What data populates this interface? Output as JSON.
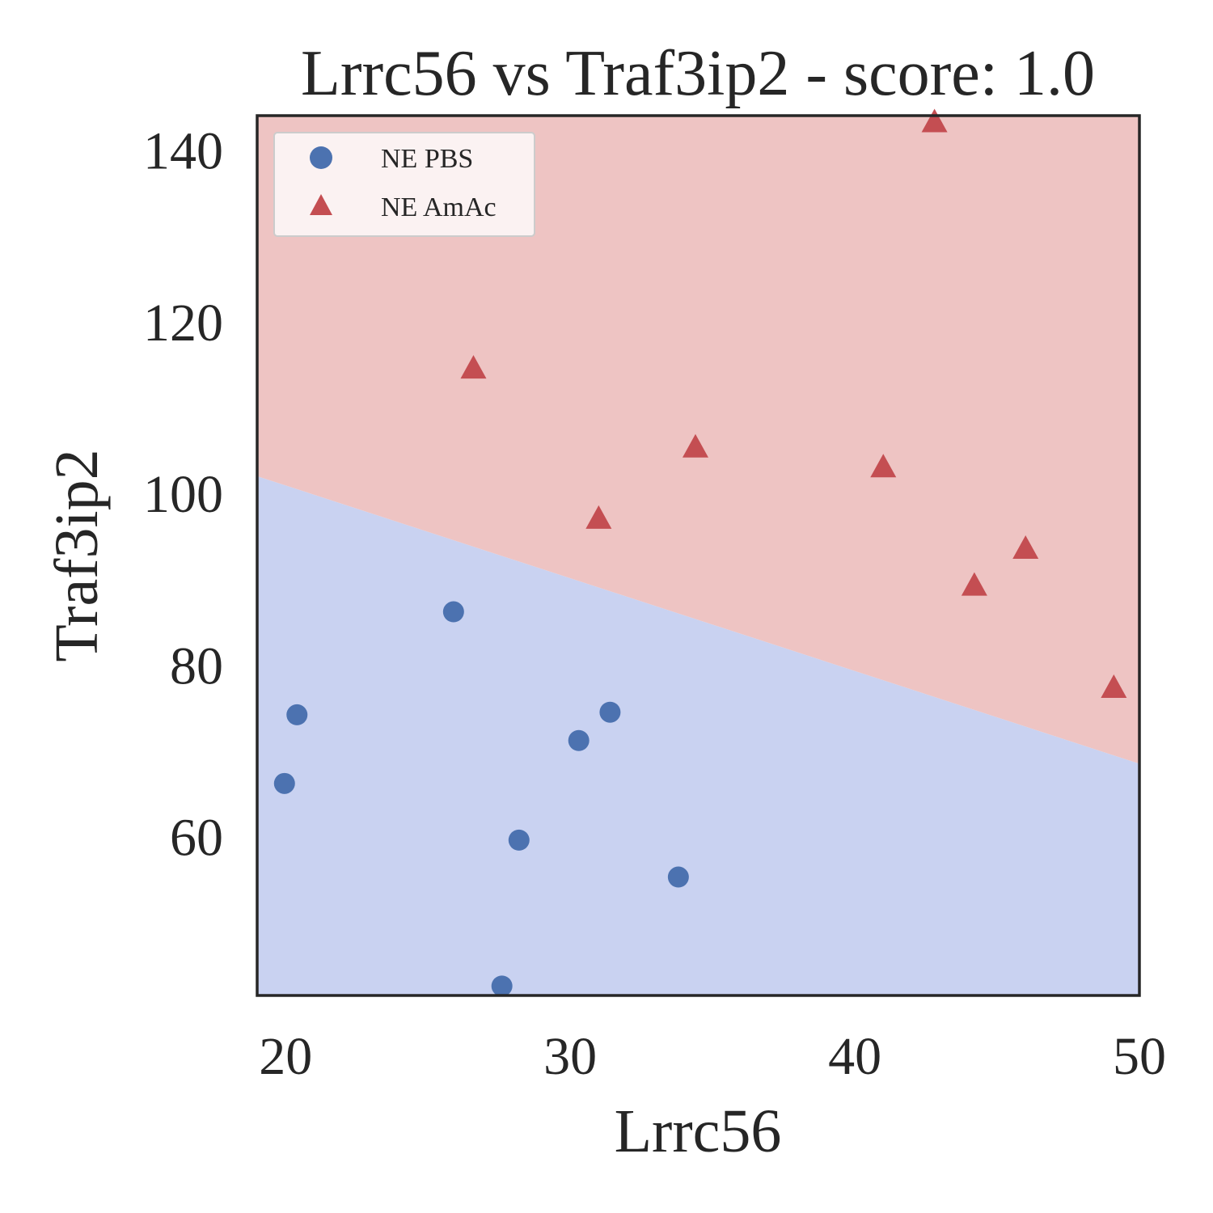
{
  "chart_data": {
    "type": "scatter",
    "title": "Lrrc56 vs Traf3ip2 - score: 1.0",
    "xlabel": "Lrrc56",
    "ylabel": "Traf3ip2",
    "xlim": [
      19,
      50
    ],
    "ylim": [
      41.5,
      144
    ],
    "xticks": [
      20,
      30,
      40,
      50
    ],
    "yticks": [
      60,
      80,
      100,
      120,
      140
    ],
    "grid": false,
    "legend_position": "top-left",
    "decision_boundary": {
      "left_y": 102,
      "right_y": 68.5
    },
    "region_colors": {
      "below": "#c9d2f1",
      "above": "#eec4c3"
    },
    "series": [
      {
        "name": "NE PBS",
        "marker": "circle",
        "color": "#4c72b0",
        "points": [
          {
            "x": 19.96,
            "y": 66.2
          },
          {
            "x": 20.4,
            "y": 74.2
          },
          {
            "x": 25.9,
            "y": 86.2
          },
          {
            "x": 27.6,
            "y": 42.6
          },
          {
            "x": 28.2,
            "y": 59.6
          },
          {
            "x": 30.3,
            "y": 71.2
          },
          {
            "x": 31.4,
            "y": 74.5
          },
          {
            "x": 33.8,
            "y": 55.3
          }
        ]
      },
      {
        "name": "NE AmAc",
        "marker": "triangle",
        "color": "#c44e52",
        "points": [
          {
            "x": 26.6,
            "y": 114.5
          },
          {
            "x": 31.0,
            "y": 97.0
          },
          {
            "x": 34.4,
            "y": 105.3
          },
          {
            "x": 41.0,
            "y": 103.0
          },
          {
            "x": 42.8,
            "y": 143.2
          },
          {
            "x": 44.2,
            "y": 89.2
          },
          {
            "x": 46.0,
            "y": 93.5
          },
          {
            "x": 49.1,
            "y": 77.3
          }
        ]
      }
    ]
  }
}
